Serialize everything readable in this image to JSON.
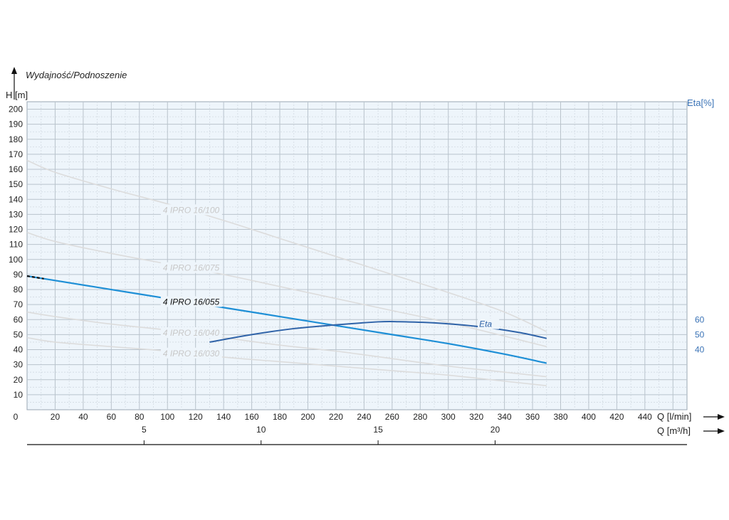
{
  "chart_data": {
    "type": "line",
    "title": "Wydajność/Podnoszenie",
    "ylabel": "H [m]",
    "ylabel_right": "Eta[%]",
    "xlabel": "Q [l/min]",
    "xlabel2": "Q [m³/h]",
    "xlim": [
      0,
      470
    ],
    "ylim": [
      0,
      205
    ],
    "ylim_right": [
      30,
      65
    ],
    "x_ticks": [
      0,
      20,
      40,
      60,
      80,
      100,
      120,
      140,
      160,
      180,
      200,
      220,
      240,
      260,
      280,
      300,
      320,
      340,
      360,
      380,
      400,
      420,
      440
    ],
    "y_ticks": [
      10,
      20,
      30,
      40,
      50,
      60,
      70,
      80,
      90,
      100,
      110,
      120,
      130,
      140,
      150,
      160,
      170,
      180,
      190,
      200
    ],
    "y_right_ticks": [
      40,
      50,
      60
    ],
    "x2_ticks": [
      5,
      10,
      15,
      20
    ],
    "grid": true,
    "series": [
      {
        "name": "4 IPRO 16/100",
        "color": "#dcdcdc",
        "highlight": false,
        "label_x": 115,
        "x": [
          0,
          20,
          60,
          100,
          140,
          180,
          220,
          260,
          300,
          340,
          370
        ],
        "y": [
          166,
          158,
          147,
          137,
          126,
          114,
          102,
          90,
          78,
          65,
          52
        ]
      },
      {
        "name": "4 IPRO 16/075",
        "color": "#dcdcdc",
        "highlight": false,
        "label_x": 115,
        "x": [
          0,
          20,
          60,
          100,
          140,
          180,
          220,
          260,
          300,
          340,
          370
        ],
        "y": [
          118,
          112,
          104,
          97,
          90,
          82,
          74,
          66,
          58,
          49,
          42
        ]
      },
      {
        "name": "4 IPRO 16/055",
        "color": "#1e8fd6",
        "highlight": true,
        "label_x": 115,
        "x": [
          0,
          20,
          60,
          100,
          140,
          180,
          220,
          260,
          300,
          340,
          370
        ],
        "y": [
          89,
          86,
          80,
          74,
          68,
          62,
          56,
          50,
          44,
          37,
          31
        ]
      },
      {
        "name": "4 IPRO 16/040",
        "color": "#dcdcdc",
        "highlight": false,
        "label_x": 115,
        "x": [
          0,
          20,
          60,
          100,
          140,
          180,
          220,
          260,
          300,
          340,
          370
        ],
        "y": [
          65,
          62,
          57,
          53,
          48,
          43,
          39,
          34,
          29,
          25,
          22
        ]
      },
      {
        "name": "4 IPRO 16/030",
        "color": "#dcdcdc",
        "highlight": false,
        "label_x": 115,
        "x": [
          0,
          20,
          60,
          100,
          140,
          180,
          220,
          260,
          300,
          340,
          370
        ],
        "y": [
          48,
          45,
          42,
          39,
          35,
          32,
          29,
          26,
          23,
          19,
          16
        ]
      }
    ],
    "eta": {
      "name": "Eta",
      "color": "#2f63a8",
      "x": [
        130,
        160,
        190,
        220,
        250,
        265,
        290,
        320,
        350,
        370
      ],
      "y": [
        45,
        50,
        54,
        56.5,
        58.5,
        58.6,
        57.8,
        55.5,
        51.5,
        47.5
      ]
    }
  }
}
